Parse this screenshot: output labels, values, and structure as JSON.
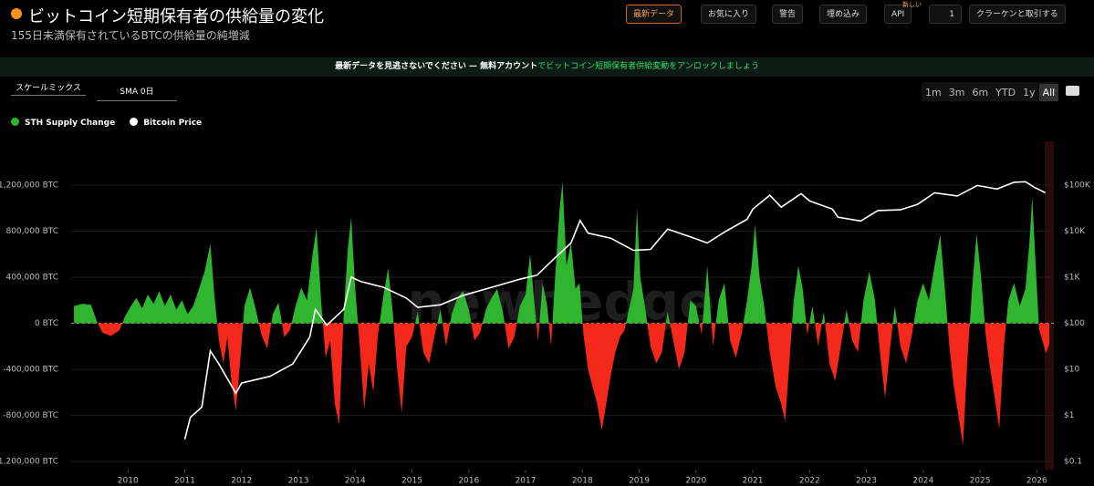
{
  "header": {
    "title": "ビットコイン短期保有者の供給量の変化",
    "subtitle": "155日未満保有されているBTCの供給量の純増減",
    "buttons": [
      "最新データ",
      "お気に入り",
      "警告",
      "埋め込み",
      "API"
    ],
    "api_badge": "新しい",
    "watch_count": 1,
    "trade_button": "クラーケンと取引する"
  },
  "banner": {
    "lead": "最新データを見逃さないでください — 無料アカウント",
    "link": "でビットコイン短期保有者供給変動をアンロックしましょう"
  },
  "controls": {
    "scale": "スケールミックス",
    "sma": "SMA 0日",
    "ranges": [
      "1m",
      "3m",
      "6m",
      "YTD",
      "1y",
      "All"
    ]
  },
  "chart_data": {
    "type": "area-line",
    "watermark": "newhedge",
    "grid": true,
    "log_scale_y2": true,
    "xlim": [
      2009.0,
      2026.3
    ],
    "xticks": [
      2010,
      2011,
      2012,
      2013,
      2014,
      2015,
      2016,
      2017,
      2018,
      2019,
      2020,
      2021,
      2022,
      2023,
      2024,
      2025,
      2026
    ],
    "ylim": [
      -1270000,
      1580000
    ],
    "yticks": [
      {
        "value": -1200000,
        "label": "-1,200,000 BTC"
      },
      {
        "value": -800000,
        "label": "-800,000 BTC"
      },
      {
        "value": -400000,
        "label": "-400,000 BTC"
      },
      {
        "value": 0,
        "label": "0 BTC"
      },
      {
        "value": 400000,
        "label": "400,000 BTC"
      },
      {
        "value": 800000,
        "label": "800,000 BTC"
      },
      {
        "value": 1200000,
        "label": "1,200,000 BTC"
      }
    ],
    "y2lim": [
      0.066,
      890000
    ],
    "y2ticks": [
      {
        "value": 0.1,
        "label": "$0.1"
      },
      {
        "value": 1,
        "label": "$1"
      },
      {
        "value": 10,
        "label": "$10"
      },
      {
        "value": 100,
        "label": "$100"
      },
      {
        "value": 1000,
        "label": "$1K"
      },
      {
        "value": 10000,
        "label": "$10K"
      },
      {
        "value": 100000,
        "label": "$100K"
      }
    ],
    "series": [
      {
        "name": "STH Supply Change",
        "color": "#2fb52f",
        "negative_color": "#f5281c",
        "x": [
          2009.05,
          2009.2,
          2009.35,
          2009.45,
          2009.55,
          2009.7,
          2009.85,
          2009.95,
          2010.05,
          2010.15,
          2010.25,
          2010.35,
          2010.45,
          2010.55,
          2010.65,
          2010.75,
          2010.85,
          2010.95,
          2011.05,
          2011.15,
          2011.25,
          2011.35,
          2011.45,
          2011.52,
          2011.6,
          2011.68,
          2011.75,
          2011.82,
          2011.9,
          2011.98,
          2012.05,
          2012.15,
          2012.25,
          2012.35,
          2012.45,
          2012.55,
          2012.65,
          2012.75,
          2012.85,
          2012.95,
          2013.05,
          2013.15,
          2013.25,
          2013.32,
          2013.4,
          2013.48,
          2013.56,
          2013.64,
          2013.72,
          2013.8,
          2013.87,
          2013.93,
          2014.0,
          2014.08,
          2014.16,
          2014.24,
          2014.32,
          2014.4,
          2014.5,
          2014.58,
          2014.66,
          2014.74,
          2014.82,
          2014.9,
          2015.0,
          2015.1,
          2015.2,
          2015.3,
          2015.4,
          2015.5,
          2015.6,
          2015.7,
          2015.8,
          2015.9,
          2016.0,
          2016.1,
          2016.2,
          2016.3,
          2016.4,
          2016.5,
          2016.6,
          2016.7,
          2016.8,
          2016.9,
          2017.0,
          2017.08,
          2017.15,
          2017.22,
          2017.3,
          2017.38,
          2017.45,
          2017.52,
          2017.6,
          2017.65,
          2017.72,
          2017.8,
          2017.88,
          2017.95,
          2018.02,
          2018.1,
          2018.18,
          2018.26,
          2018.34,
          2018.42,
          2018.5,
          2018.58,
          2018.66,
          2018.74,
          2018.82,
          2018.9,
          2018.96,
          2019.02,
          2019.1,
          2019.2,
          2019.3,
          2019.4,
          2019.5,
          2019.6,
          2019.7,
          2019.8,
          2019.9,
          2020.0,
          2020.1,
          2020.2,
          2020.3,
          2020.4,
          2020.5,
          2020.6,
          2020.7,
          2020.8,
          2020.9,
          2020.98,
          2021.04,
          2021.12,
          2021.2,
          2021.3,
          2021.4,
          2021.5,
          2021.57,
          2021.65,
          2021.72,
          2021.8,
          2021.88,
          2021.96,
          2022.05,
          2022.15,
          2022.25,
          2022.35,
          2022.45,
          2022.55,
          2022.65,
          2022.75,
          2022.85,
          2022.95,
          2023.05,
          2023.15,
          2023.25,
          2023.33,
          2023.42,
          2023.5,
          2023.6,
          2023.7,
          2023.8,
          2023.9,
          2024.0,
          2024.1,
          2024.2,
          2024.3,
          2024.38,
          2024.46,
          2024.54,
          2024.62,
          2024.7,
          2024.78,
          2024.86,
          2024.94,
          2025.02,
          2025.1,
          2025.18,
          2025.26,
          2025.34,
          2025.42,
          2025.5,
          2025.6,
          2025.7,
          2025.8,
          2025.87,
          2025.92,
          2025.98,
          2026.04,
          2026.1,
          2026.16,
          2026.22
        ],
        "values": [
          150000,
          170000,
          160000,
          20000,
          -80000,
          -110000,
          -60000,
          60000,
          150000,
          220000,
          130000,
          250000,
          170000,
          280000,
          150000,
          250000,
          120000,
          200000,
          80000,
          150000,
          300000,
          450000,
          690000,
          250000,
          -150000,
          -350000,
          -120000,
          -500000,
          -760000,
          -300000,
          150000,
          310000,
          120000,
          -100000,
          -220000,
          80000,
          180000,
          -120000,
          -60000,
          150000,
          310000,
          200000,
          600000,
          830000,
          200000,
          -300000,
          -150000,
          -700000,
          -880000,
          100000,
          650000,
          920000,
          300000,
          -200000,
          -750000,
          -350000,
          -600000,
          -100000,
          250000,
          480000,
          100000,
          -400000,
          -780000,
          -200000,
          -120000,
          100000,
          -250000,
          -350000,
          -100000,
          120000,
          -200000,
          80000,
          220000,
          280000,
          120000,
          -150000,
          -80000,
          120000,
          220000,
          300000,
          100000,
          -220000,
          -120000,
          150000,
          250000,
          600000,
          200000,
          -150000,
          350000,
          150000,
          -200000,
          400000,
          1000000,
          1230000,
          500000,
          700000,
          300000,
          350000,
          -100000,
          -400000,
          -550000,
          -700000,
          -930000,
          -700000,
          -450000,
          -250000,
          -120000,
          -60000,
          120000,
          300000,
          1000000,
          400000,
          150000,
          -200000,
          -350000,
          -250000,
          100000,
          -150000,
          -400000,
          -250000,
          200000,
          150000,
          -100000,
          500000,
          -200000,
          200000,
          350000,
          -150000,
          -300000,
          -100000,
          200000,
          500000,
          860000,
          400000,
          150000,
          -250000,
          -550000,
          -700000,
          -850000,
          -300000,
          200000,
          500000,
          300000,
          -100000,
          150000,
          -200000,
          100000,
          -350000,
          -500000,
          -200000,
          120000,
          -150000,
          -250000,
          200000,
          450000,
          200000,
          -300000,
          -650000,
          -200000,
          150000,
          -200000,
          -350000,
          -100000,
          200000,
          350000,
          200000,
          500000,
          770000,
          300000,
          -200000,
          -550000,
          -800000,
          -1060000,
          -300000,
          300000,
          780000,
          400000,
          -100000,
          -400000,
          -650000,
          -920000,
          -200000,
          200000,
          350000,
          150000,
          300000,
          700000,
          1100000,
          500000,
          -50000,
          -150000,
          -260000,
          -180000
        ]
      },
      {
        "name": "Bitcoin Price",
        "color": "#ffffff",
        "axis": "y2",
        "x": [
          2011.0,
          2011.1,
          2011.3,
          2011.45,
          2011.6,
          2011.9,
          2012.0,
          2012.5,
          2012.9,
          2013.2,
          2013.3,
          2013.5,
          2013.8,
          2013.93,
          2014.1,
          2014.5,
          2014.9,
          2015.1,
          2015.5,
          2015.9,
          2016.5,
          2016.9,
          2017.2,
          2017.5,
          2017.8,
          2017.96,
          2018.1,
          2018.5,
          2018.9,
          2019.2,
          2019.5,
          2019.9,
          2020.2,
          2020.5,
          2020.9,
          2021.0,
          2021.3,
          2021.5,
          2021.85,
          2022.0,
          2022.4,
          2022.5,
          2022.9,
          2023.2,
          2023.6,
          2023.9,
          2024.2,
          2024.6,
          2024.95,
          2025.3,
          2025.6,
          2025.8,
          2025.95,
          2026.15
        ],
        "values": [
          0.3,
          0.9,
          1.5,
          25,
          13,
          3,
          5,
          7,
          13,
          50,
          200,
          90,
          200,
          1000,
          800,
          600,
          350,
          220,
          250,
          400,
          650,
          900,
          1100,
          2500,
          5500,
          17000,
          9000,
          7000,
          3800,
          4000,
          11000,
          7500,
          5500,
          9500,
          18000,
          30000,
          60000,
          33000,
          65000,
          45000,
          30000,
          20000,
          16500,
          28000,
          29000,
          38000,
          68000,
          58000,
          98000,
          82000,
          115000,
          118000,
          90000,
          68000
        ]
      }
    ]
  }
}
